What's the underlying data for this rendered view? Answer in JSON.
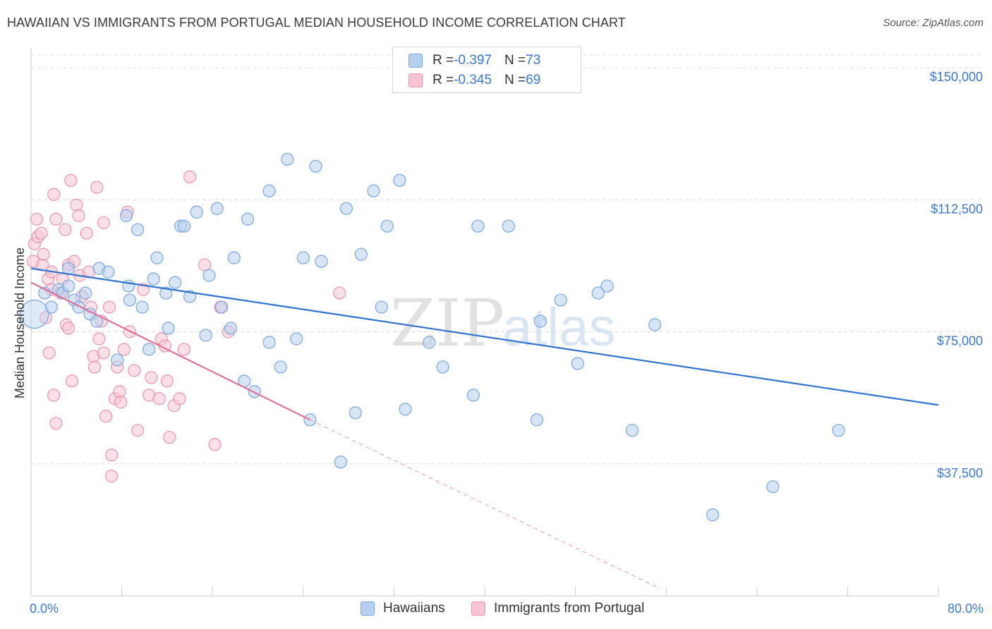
{
  "header": {
    "title": "HAWAIIAN VS IMMIGRANTS FROM PORTUGAL MEDIAN HOUSEHOLD INCOME CORRELATION CHART",
    "source": "Source: ZipAtlas.com"
  },
  "legend_top": {
    "rows": [
      {
        "r_label": "R = ",
        "r_value": "-0.397",
        "n_label": "N = ",
        "n_value": "73"
      },
      {
        "r_label": "R = ",
        "r_value": "-0.345",
        "n_label": "N = ",
        "n_value": "69"
      }
    ]
  },
  "legend_bottom": {
    "items": [
      "Hawaiians",
      "Immigrants from Portugal"
    ]
  },
  "watermark": {
    "zip": "ZIP",
    "atlas": "atlas"
  },
  "colors": {
    "hawaiians_fill": "#b7d0f1",
    "hawaiians_stroke": "#7aa5dd",
    "hawaiians_line": "#2f73d0",
    "portugal_fill": "#f7c4d4",
    "portugal_stroke": "#e994b2",
    "portugal_line": "#e0709a",
    "tick_label": "#3a78d4",
    "grid": "#dcdcdc"
  },
  "chart_data": {
    "type": "scatter",
    "title": "HAWAIIAN VS IMMIGRANTS FROM PORTUGAL MEDIAN HOUSEHOLD INCOME CORRELATION CHART",
    "xlabel": "",
    "ylabel": "Median Household Income",
    "xlim": [
      0,
      80
    ],
    "ylim": [
      0,
      150000
    ],
    "x_tick_labels": [
      "0.0%",
      "80.0%"
    ],
    "y_ticks": [
      37500,
      75000,
      112500,
      150000
    ],
    "y_tick_labels": [
      "$37,500",
      "$75,000",
      "$112,500",
      "$150,000"
    ],
    "grid": true,
    "legend_position": "top-center",
    "series": [
      {
        "name": "Hawaiians",
        "r": -0.397,
        "n": 73,
        "trend": {
          "x": [
            0,
            80
          ],
          "y": [
            93000,
            54200
          ]
        },
        "points": [
          [
            0.3,
            80000
          ],
          [
            1.2,
            86000
          ],
          [
            1.8,
            82000
          ],
          [
            2.4,
            87000
          ],
          [
            2.8,
            86000
          ],
          [
            3.3,
            93000
          ],
          [
            3.3,
            88000
          ],
          [
            3.8,
            84000
          ],
          [
            4.2,
            82000
          ],
          [
            4.8,
            86000
          ],
          [
            5.2,
            80000
          ],
          [
            5.8,
            78000
          ],
          [
            6.0,
            93000
          ],
          [
            6.8,
            92000
          ],
          [
            7.6,
            67000
          ],
          [
            8.4,
            108000
          ],
          [
            8.6,
            88000
          ],
          [
            8.7,
            84000
          ],
          [
            9.4,
            104000
          ],
          [
            9.8,
            82000
          ],
          [
            10.4,
            70000
          ],
          [
            10.8,
            90000
          ],
          [
            11.1,
            96000
          ],
          [
            11.9,
            86000
          ],
          [
            12.1,
            76000
          ],
          [
            12.7,
            89000
          ],
          [
            13.2,
            105000
          ],
          [
            13.5,
            105000
          ],
          [
            14.0,
            85000
          ],
          [
            14.6,
            109000
          ],
          [
            15.4,
            74000
          ],
          [
            15.7,
            91000
          ],
          [
            16.4,
            110000
          ],
          [
            16.8,
            82000
          ],
          [
            17.6,
            76000
          ],
          [
            17.9,
            96000
          ],
          [
            18.8,
            61000
          ],
          [
            19.1,
            107000
          ],
          [
            19.7,
            58000
          ],
          [
            21.0,
            115000
          ],
          [
            21.0,
            72000
          ],
          [
            22.0,
            65000
          ],
          [
            22.6,
            124000
          ],
          [
            23.4,
            73000
          ],
          [
            24.0,
            96000
          ],
          [
            24.6,
            50000
          ],
          [
            25.1,
            122000
          ],
          [
            25.6,
            95000
          ],
          [
            27.3,
            38000
          ],
          [
            27.8,
            110000
          ],
          [
            28.6,
            52000
          ],
          [
            29.1,
            97000
          ],
          [
            30.2,
            115000
          ],
          [
            30.9,
            82000
          ],
          [
            31.4,
            105000
          ],
          [
            32.5,
            118000
          ],
          [
            33.0,
            53000
          ],
          [
            35.1,
            72000
          ],
          [
            36.3,
            65000
          ],
          [
            39.0,
            57000
          ],
          [
            39.4,
            105000
          ],
          [
            42.1,
            105000
          ],
          [
            44.6,
            50000
          ],
          [
            44.9,
            78000
          ],
          [
            46.7,
            84000
          ],
          [
            48.2,
            66000
          ],
          [
            50.0,
            86000
          ],
          [
            50.8,
            88000
          ],
          [
            53.0,
            47000
          ],
          [
            55.0,
            77000
          ],
          [
            60.1,
            23000
          ],
          [
            65.4,
            31000
          ],
          [
            71.2,
            47000
          ]
        ]
      },
      {
        "name": "Immigrants from Portugal",
        "r": -0.345,
        "n": 69,
        "trend": {
          "x": [
            0,
            24.6
          ],
          "y": [
            89000,
            50000
          ]
        },
        "trend_extension": {
          "x": [
            24.6,
            55.5
          ],
          "y": [
            50000,
            2000
          ]
        },
        "points": [
          [
            0.2,
            95000
          ],
          [
            0.3,
            100000
          ],
          [
            0.5,
            107000
          ],
          [
            0.6,
            102000
          ],
          [
            0.9,
            103000
          ],
          [
            1.0,
            94000
          ],
          [
            1.1,
            97000
          ],
          [
            1.3,
            79000
          ],
          [
            1.5,
            90000
          ],
          [
            1.6,
            69000
          ],
          [
            1.8,
            87000
          ],
          [
            1.8,
            92000
          ],
          [
            2.0,
            114000
          ],
          [
            2.2,
            107000
          ],
          [
            2.0,
            57000
          ],
          [
            2.2,
            49000
          ],
          [
            2.6,
            86000
          ],
          [
            2.8,
            90000
          ],
          [
            3.0,
            104000
          ],
          [
            3.1,
            77000
          ],
          [
            3.3,
            94000
          ],
          [
            3.5,
            118000
          ],
          [
            3.6,
            61000
          ],
          [
            3.8,
            95000
          ],
          [
            4.0,
            111000
          ],
          [
            4.2,
            108000
          ],
          [
            4.3,
            91000
          ],
          [
            4.5,
            85000
          ],
          [
            4.9,
            103000
          ],
          [
            5.1,
            92000
          ],
          [
            5.3,
            82000
          ],
          [
            5.5,
            68000
          ],
          [
            5.6,
            65000
          ],
          [
            5.8,
            116000
          ],
          [
            6.0,
            73000
          ],
          [
            6.2,
            78000
          ],
          [
            6.4,
            106000
          ],
          [
            6.6,
            51000
          ],
          [
            6.9,
            82000
          ],
          [
            7.1,
            34000
          ],
          [
            7.4,
            56000
          ],
          [
            7.6,
            65000
          ],
          [
            7.8,
            58000
          ],
          [
            7.9,
            55000
          ],
          [
            8.2,
            70000
          ],
          [
            8.5,
            109000
          ],
          [
            8.7,
            75000
          ],
          [
            9.1,
            64000
          ],
          [
            9.4,
            47000
          ],
          [
            9.9,
            87000
          ],
          [
            10.4,
            57000
          ],
          [
            10.6,
            62000
          ],
          [
            11.3,
            56000
          ],
          [
            11.5,
            73000
          ],
          [
            11.8,
            71000
          ],
          [
            12.2,
            45000
          ],
          [
            12.6,
            54000
          ],
          [
            13.1,
            56000
          ],
          [
            13.5,
            70000
          ],
          [
            14.0,
            119000
          ],
          [
            15.3,
            94000
          ],
          [
            16.2,
            43000
          ],
          [
            16.7,
            82000
          ],
          [
            17.4,
            75000
          ],
          [
            27.2,
            86000
          ],
          [
            6.4,
            69000
          ],
          [
            7.1,
            40000
          ],
          [
            12.0,
            61000
          ],
          [
            3.3,
            76000
          ]
        ]
      }
    ]
  }
}
